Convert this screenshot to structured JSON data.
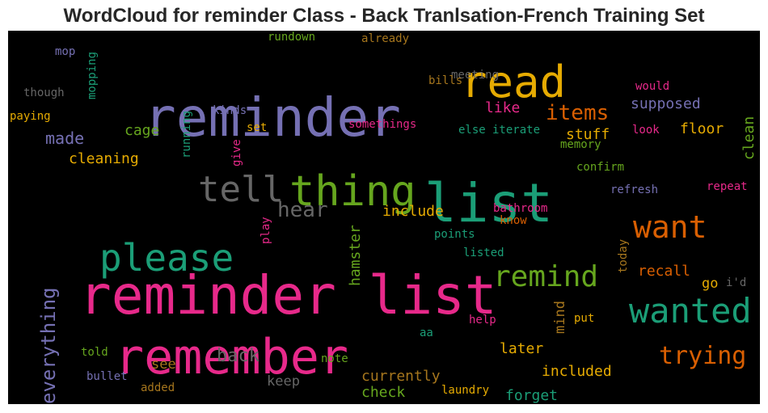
{
  "chart_data": {
    "type": "wordcloud",
    "title": "WordCloud for reminder Class - Back Tranlsation-French Training Set",
    "background": "#000000",
    "palette": {
      "purple": "#7570b3",
      "green": "#1b9e77",
      "orange": "#d95f02",
      "pink": "#e7298a",
      "lime": "#66a61e",
      "gold": "#e6ab02",
      "brown": "#a6761d",
      "gray": "#666666"
    },
    "words": [
      {
        "text": "reminder list",
        "color": "#e7298a"
      },
      {
        "text": "reminder",
        "color": "#7570b3"
      },
      {
        "text": "list",
        "color": "#1b9e77"
      },
      {
        "text": "remember",
        "color": "#e7298a"
      },
      {
        "text": "read",
        "color": "#e6ab02"
      },
      {
        "text": "thing",
        "color": "#66a61e"
      },
      {
        "text": "please",
        "color": "#1b9e77"
      },
      {
        "text": "tell",
        "color": "#666666"
      },
      {
        "text": "wanted",
        "color": "#1b9e77"
      },
      {
        "text": "want",
        "color": "#d95f02"
      },
      {
        "text": "remind",
        "color": "#66a61e"
      },
      {
        "text": "trying",
        "color": "#d95f02"
      },
      {
        "text": "hear",
        "color": "#666666"
      },
      {
        "text": "items",
        "color": "#d95f02"
      },
      {
        "text": "everything",
        "color": "#7570b3"
      },
      {
        "text": "back",
        "color": "#666666"
      },
      {
        "text": "made",
        "color": "#7570b3"
      },
      {
        "text": "supposed",
        "color": "#7570b3"
      },
      {
        "text": "floor",
        "color": "#e6ab02"
      },
      {
        "text": "recall",
        "color": "#d95f02"
      },
      {
        "text": "clean",
        "color": "#66a61e"
      },
      {
        "text": "stuff",
        "color": "#e6ab02"
      },
      {
        "text": "cage",
        "color": "#66a61e"
      },
      {
        "text": "cleaning",
        "color": "#e6ab02"
      },
      {
        "text": "like",
        "color": "#e7298a"
      },
      {
        "text": "include",
        "color": "#e6ab02"
      },
      {
        "text": "hamster",
        "color": "#66a61e"
      },
      {
        "text": "later",
        "color": "#e6ab02"
      },
      {
        "text": "included",
        "color": "#e6ab02"
      },
      {
        "text": "currently",
        "color": "#a6761d"
      },
      {
        "text": "check",
        "color": "#66a61e"
      },
      {
        "text": "forget",
        "color": "#1b9e77"
      },
      {
        "text": "keep",
        "color": "#666666"
      },
      {
        "text": "see",
        "color": "#a6761d"
      },
      {
        "text": "go",
        "color": "#e6ab02"
      },
      {
        "text": "mind",
        "color": "#a6761d"
      },
      {
        "text": "rundown",
        "color": "#66a61e"
      },
      {
        "text": "already",
        "color": "#a6761d"
      },
      {
        "text": "meeting",
        "color": "#666666"
      },
      {
        "text": "bills",
        "color": "#a6761d"
      },
      {
        "text": "mop",
        "color": "#7570b3"
      },
      {
        "text": "mopping",
        "color": "#1b9e77"
      },
      {
        "text": "though",
        "color": "#666666"
      },
      {
        "text": "paying",
        "color": "#e6ab02"
      },
      {
        "text": "kinds",
        "color": "#7570b3"
      },
      {
        "text": "set",
        "color": "#e6ab02"
      },
      {
        "text": "somethings",
        "color": "#e7298a"
      },
      {
        "text": "running",
        "color": "#1b9e77"
      },
      {
        "text": "give",
        "color": "#e7298a"
      },
      {
        "text": "else",
        "color": "#1b9e77"
      },
      {
        "text": "iterate",
        "color": "#1b9e77"
      },
      {
        "text": "memory",
        "color": "#66a61e"
      },
      {
        "text": "look",
        "color": "#e7298a"
      },
      {
        "text": "would",
        "color": "#e7298a"
      },
      {
        "text": "confirm",
        "color": "#66a61e"
      },
      {
        "text": "refresh",
        "color": "#7570b3"
      },
      {
        "text": "repeat",
        "color": "#e7298a"
      },
      {
        "text": "bathroom",
        "color": "#e7298a"
      },
      {
        "text": "know",
        "color": "#d95f02"
      },
      {
        "text": "play",
        "color": "#e7298a"
      },
      {
        "text": "points",
        "color": "#1b9e77"
      },
      {
        "text": "listed",
        "color": "#1b9e77"
      },
      {
        "text": "today",
        "color": "#a6761d"
      },
      {
        "text": "i'd",
        "color": "#666666"
      },
      {
        "text": "help",
        "color": "#e7298a"
      },
      {
        "text": "put",
        "color": "#e6ab02"
      },
      {
        "text": "aa",
        "color": "#1b9e77"
      },
      {
        "text": "told",
        "color": "#66a61e"
      },
      {
        "text": "note",
        "color": "#66a61e"
      },
      {
        "text": "bullet",
        "color": "#7570b3"
      },
      {
        "text": "added",
        "color": "#a6761d"
      },
      {
        "text": "laundry",
        "color": "#e6ab02"
      }
    ]
  }
}
